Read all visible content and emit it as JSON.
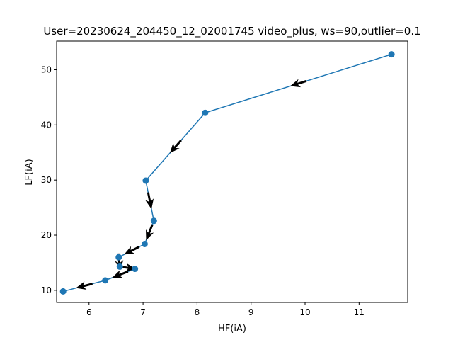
{
  "chart_data": {
    "type": "line",
    "title": "User=20230624_204450_12_02001745 video_plus, ws=90,outlier=0.1",
    "xlabel": "HF(iA)",
    "ylabel": "LF(iA)",
    "xlim": [
      5.4,
      11.9
    ],
    "ylim": [
      7.8,
      55.2
    ],
    "xticks": [
      6,
      7,
      8,
      9,
      10,
      11
    ],
    "yticks": [
      10,
      20,
      30,
      40,
      50
    ],
    "grid": false,
    "line_color": "#1f77b4",
    "arrow_color": "#000000",
    "series": [
      {
        "x": [
          11.6,
          8.15,
          7.05,
          7.2,
          7.03,
          6.55,
          6.57,
          6.85,
          6.3,
          5.52
        ],
        "y": [
          52.8,
          42.2,
          29.9,
          22.6,
          18.4,
          16.0,
          14.3,
          13.9,
          11.8,
          9.8
        ]
      }
    ]
  }
}
